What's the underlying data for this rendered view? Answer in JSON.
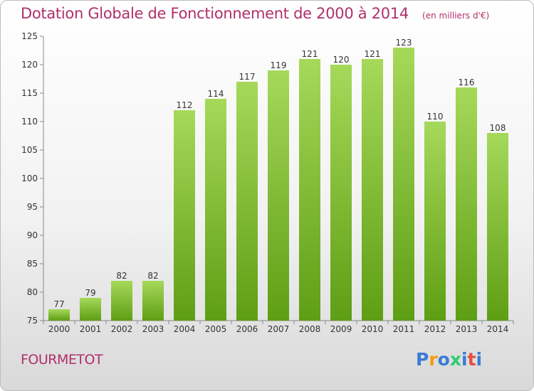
{
  "title": "Dotation Globale de Fonctionnement de 2000 à 2014",
  "unit": "(en milliers d'€)",
  "commune": "FOURMETOT",
  "logo": {
    "text": "Proxiti",
    "colors": [
      "#3a7bd5",
      "#f39c12",
      "#3a7bd5",
      "#2ecc71",
      "#3a7bd5",
      "#e74c3c",
      "#3a7bd5"
    ]
  },
  "colors": {
    "bar_light": "#a6d95a",
    "bar_dark": "#5e9e14",
    "title": "#b0306a"
  },
  "chart_data": {
    "type": "bar",
    "categories": [
      "2000",
      "2001",
      "2002",
      "2003",
      "2004",
      "2005",
      "2006",
      "2007",
      "2008",
      "2009",
      "2010",
      "2011",
      "2012",
      "2013",
      "2014"
    ],
    "values": [
      77,
      79,
      82,
      82,
      112,
      114,
      117,
      119,
      121,
      120,
      121,
      123,
      110,
      116,
      108
    ],
    "title": "Dotation Globale de Fonctionnement de 2000 à 2014",
    "ylabel": "",
    "xlabel": "",
    "ylim": [
      75,
      125
    ],
    "yticks": [
      75,
      80,
      85,
      90,
      95,
      100,
      105,
      110,
      115,
      120,
      125
    ],
    "grid": false
  }
}
